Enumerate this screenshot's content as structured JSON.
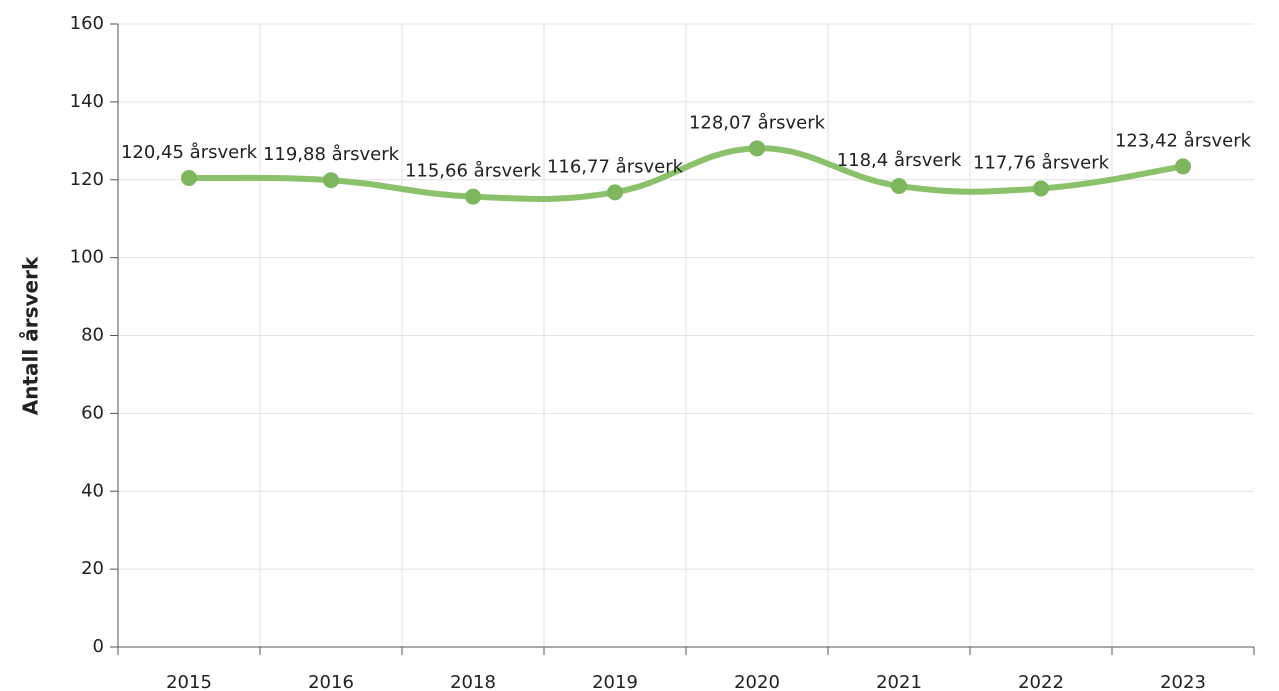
{
  "chart_data": {
    "type": "line",
    "ylabel": "Antall årsverk",
    "categories": [
      "2015",
      "2016",
      "2018",
      "2019",
      "2020",
      "2021",
      "2022",
      "2023"
    ],
    "series": [
      {
        "name": "Antall årsverk",
        "color": "#8cc16b",
        "marker_color": "#7db65c",
        "values": [
          120.45,
          119.88,
          115.66,
          116.77,
          128.07,
          118.4,
          117.76,
          123.42
        ],
        "value_labels": [
          "120,45 årsverk",
          "119,88 årsverk",
          "115,66 årsverk",
          "116,77 årsverk",
          "128,07 årsverk",
          "118,4 årsverk",
          "117,76 årsverk",
          "123,42 årsverk"
        ]
      }
    ],
    "ylim": [
      0,
      160
    ],
    "yticks": [
      0,
      20,
      40,
      60,
      80,
      100,
      120,
      140,
      160
    ],
    "grid": true,
    "smooth": true
  }
}
